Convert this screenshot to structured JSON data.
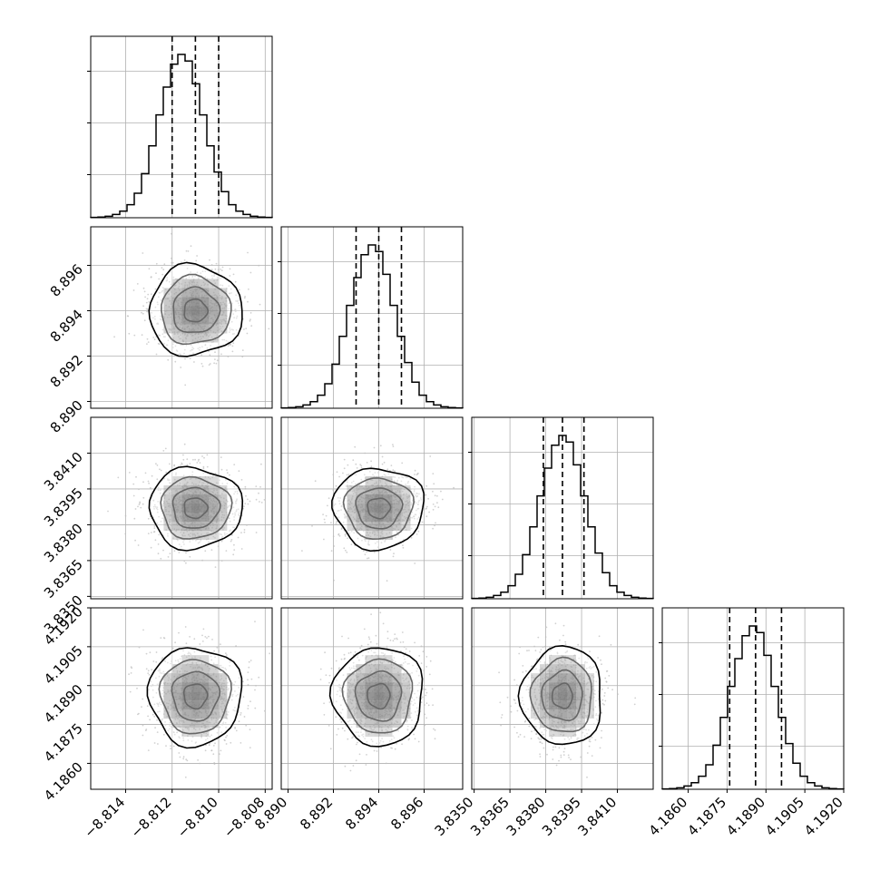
{
  "chart_data": {
    "type": "corner",
    "grid": true,
    "parameters": [
      {
        "mean": -8.811,
        "sd": 0.001,
        "range": [
          -8.8155,
          -8.8077
        ],
        "ticks": [
          -8.814,
          -8.812,
          -8.81,
          -8.808
        ],
        "tick_labels": [
          "−8.814",
          "−8.812",
          "−8.810",
          "−8.808"
        ],
        "quantiles": [
          -8.812,
          -8.811,
          -8.81
        ]
      },
      {
        "mean": 8.894,
        "sd": 0.001,
        "range": [
          8.8897,
          8.8977
        ],
        "ticks": [
          8.89,
          8.892,
          8.894,
          8.896
        ],
        "tick_labels": [
          "8.890",
          "8.892",
          "8.894",
          "8.896"
        ],
        "quantiles": [
          8.893,
          8.894,
          8.895
        ]
      },
      {
        "mean": 3.8387,
        "sd": 0.00085,
        "range": [
          3.8349,
          3.8425
        ],
        "ticks": [
          3.835,
          3.8365,
          3.838,
          3.8395,
          3.841
        ],
        "tick_labels": [
          "3.8350",
          "3.8365",
          "3.8380",
          "3.8395",
          "3.8410"
        ],
        "quantiles": [
          3.8379,
          3.8387,
          3.8396
        ]
      },
      {
        "mean": 4.1886,
        "sd": 0.00095,
        "range": [
          4.185,
          4.192
        ],
        "ticks": [
          4.186,
          4.1875,
          4.189,
          4.1905,
          4.192
        ],
        "tick_labels": [
          "4.1860",
          "4.1875",
          "4.1890",
          "4.1905",
          "4.1920"
        ],
        "quantiles": [
          4.1876,
          4.1886,
          4.1896
        ]
      }
    ],
    "histograms": [
      [
        0.002,
        0.004,
        0.009,
        0.02,
        0.04,
        0.08,
        0.15,
        0.27,
        0.44,
        0.63,
        0.8,
        0.94,
        1.0,
        0.96,
        0.82,
        0.63,
        0.44,
        0.28,
        0.16,
        0.08,
        0.04,
        0.02,
        0.009,
        0.004,
        0.002
      ],
      [
        0.002,
        0.004,
        0.009,
        0.02,
        0.04,
        0.08,
        0.15,
        0.27,
        0.44,
        0.63,
        0.8,
        0.94,
        1.0,
        0.96,
        0.82,
        0.63,
        0.44,
        0.28,
        0.16,
        0.08,
        0.04,
        0.02,
        0.009,
        0.004,
        0.002
      ],
      [
        0.002,
        0.004,
        0.009,
        0.02,
        0.04,
        0.08,
        0.15,
        0.27,
        0.44,
        0.63,
        0.8,
        0.94,
        1.0,
        0.96,
        0.82,
        0.63,
        0.44,
        0.28,
        0.16,
        0.08,
        0.04,
        0.02,
        0.009,
        0.004,
        0.002
      ],
      [
        0.002,
        0.004,
        0.009,
        0.02,
        0.04,
        0.08,
        0.15,
        0.27,
        0.44,
        0.63,
        0.8,
        0.94,
        1.0,
        0.96,
        0.82,
        0.63,
        0.44,
        0.28,
        0.16,
        0.08,
        0.04,
        0.02,
        0.009,
        0.004,
        0.002
      ]
    ],
    "contour_levels_sigma": [
      0.5,
      1.0,
      1.5,
      2.0
    ],
    "colors": {
      "line": "#000000",
      "grid": "#b0b0b0",
      "points": "#bdbdbd",
      "density": "#000000"
    }
  }
}
